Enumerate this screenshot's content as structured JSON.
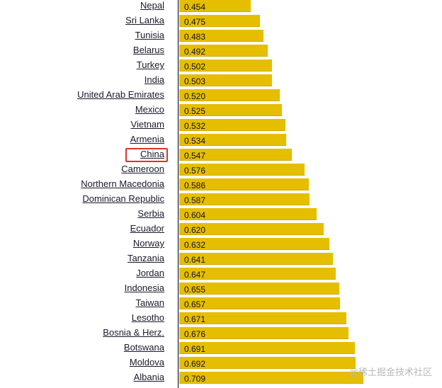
{
  "chart_data": {
    "type": "bar",
    "orientation": "horizontal",
    "categories": [
      "Nepal",
      "Sri Lanka",
      "Tunisia",
      "Belarus",
      "Turkey",
      "India",
      "United Arab Emirates",
      "Mexico",
      "Vietnam",
      "Armenia",
      "China",
      "Cameroon",
      "Northern Macedonia",
      "Dominican Republic",
      "Serbia",
      "Ecuador",
      "Norway",
      "Tanzania",
      "Jordan",
      "Indonesia",
      "Taiwan",
      "Lesotho",
      "Bosnia & Herz.",
      "Botswana",
      "Moldova",
      "Albania"
    ],
    "values": [
      0.454,
      0.475,
      0.483,
      0.492,
      0.502,
      0.503,
      0.52,
      0.525,
      0.532,
      0.534,
      0.547,
      0.576,
      0.586,
      0.587,
      0.604,
      0.62,
      0.632,
      0.641,
      0.647,
      0.655,
      0.657,
      0.671,
      0.676,
      0.691,
      0.692,
      0.709
    ],
    "value_labels": [
      "0.454",
      "0.475",
      "0.483",
      "0.492",
      "0.502",
      "0.503",
      "0.520",
      "0.525",
      "0.532",
      "0.534",
      "0.547",
      "0.576",
      "0.586",
      "0.587",
      "0.604",
      "0.620",
      "0.632",
      "0.641",
      "0.647",
      "0.655",
      "0.657",
      "0.671",
      "0.676",
      "0.691",
      "0.692",
      "0.709"
    ],
    "highlighted_category": "China",
    "bar_color": "#e6be00",
    "highlight_color": "#d9342b",
    "xlim": [
      0,
      1
    ],
    "grid": false
  },
  "watermark": "@稀土掘金技术社区"
}
